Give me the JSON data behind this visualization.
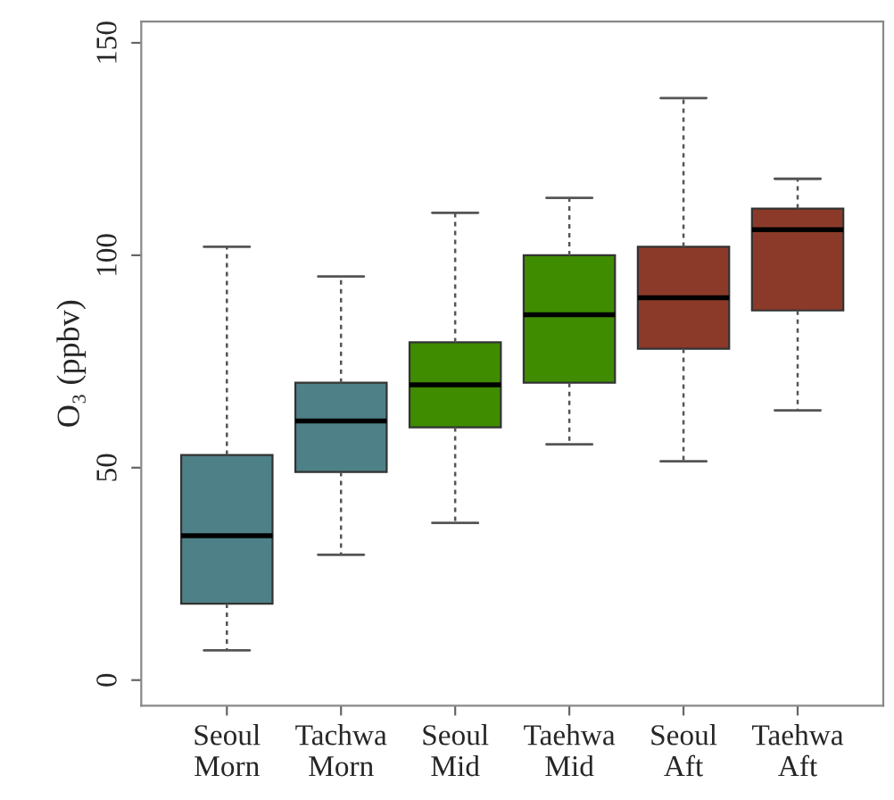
{
  "chart_data": {
    "type": "box",
    "ylabel": "O₃ (ppbv)",
    "categories": [
      "Seoul\nMorn",
      "Tachwa\nMorn",
      "Seoul\nMid",
      "Taehwa\nMid",
      "Seoul\nAft",
      "Taehwa\nAft"
    ],
    "colors": [
      "#4e8087",
      "#4e8087",
      "#3f8c00",
      "#3f8c00",
      "#8b3a2a",
      "#8b3a2a"
    ],
    "boxes": [
      {
        "low": 7,
        "q1": 18,
        "median": 34,
        "q3": 53,
        "high": 102
      },
      {
        "low": 29.5,
        "q1": 49,
        "median": 61,
        "q3": 70,
        "high": 95
      },
      {
        "low": 37,
        "q1": 59.5,
        "median": 69.5,
        "q3": 79.5,
        "high": 110
      },
      {
        "low": 55.5,
        "q1": 70,
        "median": 86,
        "q3": 100,
        "high": 113.5
      },
      {
        "low": 51.5,
        "q1": 78,
        "median": 90,
        "q3": 102,
        "high": 137
      },
      {
        "low": 63.5,
        "q1": 87,
        "median": 106,
        "q3": 111,
        "high": 118
      }
    ],
    "ylim": [
      -6,
      155
    ],
    "yticks": [
      0,
      50,
      100,
      150
    ],
    "grid": false,
    "legend": false
  }
}
